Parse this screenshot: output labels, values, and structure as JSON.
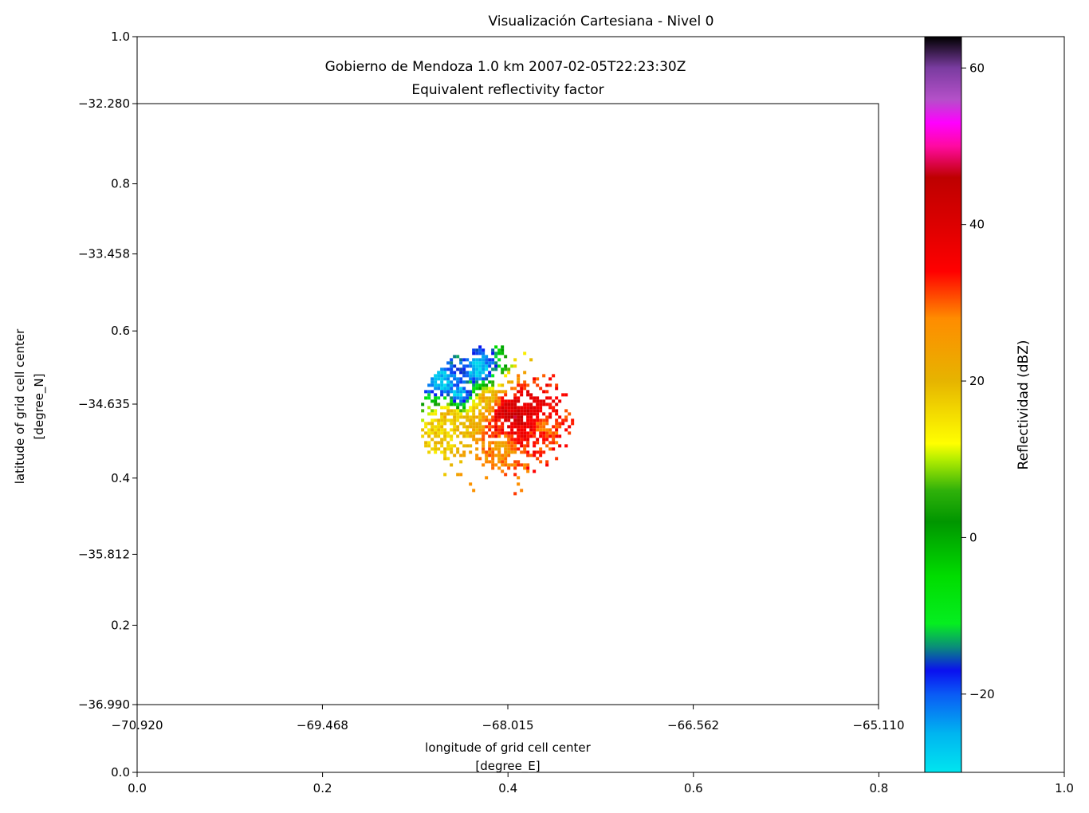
{
  "figure": {
    "title": "Visualización Cartesiana - Nivel 0"
  },
  "chart_data": [
    {
      "type": "axes",
      "role": "outer-figure-axes",
      "xlim": [
        0.0,
        1.0
      ],
      "ylim": [
        0.0,
        1.0
      ],
      "x_ticks": [
        {
          "value": 0.0,
          "label": "0.0"
        },
        {
          "value": 0.2,
          "label": "0.2"
        },
        {
          "value": 0.4,
          "label": "0.4"
        },
        {
          "value": 0.6,
          "label": "0.6"
        },
        {
          "value": 0.8,
          "label": "0.8"
        },
        {
          "value": 1.0,
          "label": "1.0"
        }
      ],
      "y_ticks": [
        {
          "value": 0.0,
          "label": "0.0"
        },
        {
          "value": 0.2,
          "label": "0.2"
        },
        {
          "value": 0.4,
          "label": "0.4"
        },
        {
          "value": 0.6,
          "label": "0.6"
        },
        {
          "value": 0.8,
          "label": "0.8"
        },
        {
          "value": 1.0,
          "label": "1.0"
        }
      ],
      "grid": false
    },
    {
      "type": "heatmap",
      "role": "radar-reflectivity-map",
      "title": "Gobierno de Mendoza 1.0 km 2007-02-05T22:23:30Z",
      "subtitle": "Equivalent reflectivity factor",
      "xlabel": "longitude of grid cell center",
      "xlabel_units": "[degree_E]",
      "ylabel": "latitude of grid cell center",
      "ylabel_units": "[degree_N]",
      "xlim": [
        -70.92,
        -65.11
      ],
      "ylim": [
        -36.99,
        -32.28
      ],
      "x_ticks": [
        {
          "value": -70.92,
          "label": "−70.920"
        },
        {
          "value": -69.468,
          "label": "−69.468"
        },
        {
          "value": -68.015,
          "label": "−68.015"
        },
        {
          "value": -66.562,
          "label": "−66.562"
        },
        {
          "value": -65.11,
          "label": "−65.110"
        }
      ],
      "y_ticks": [
        {
          "value": -32.28,
          "label": "−32.280"
        },
        {
          "value": -33.458,
          "label": "−33.458"
        },
        {
          "value": -34.635,
          "label": "−34.635"
        },
        {
          "value": -35.812,
          "label": "−35.812"
        },
        {
          "value": -36.99,
          "label": "−36.990"
        }
      ],
      "grid": false,
      "radar_echo": {
        "center_lon": -68.12,
        "center_lat": -34.75,
        "max_range_deg": 0.6,
        "cells": [
          {
            "lon": -68.05,
            "lat": -34.7,
            "dbz": 42
          },
          {
            "lon": -67.95,
            "lat": -34.72,
            "dbz": 44
          },
          {
            "lon": -67.88,
            "lat": -34.65,
            "dbz": 40
          },
          {
            "lon": -67.8,
            "lat": -34.7,
            "dbz": 38
          },
          {
            "lon": -68.1,
            "lat": -34.8,
            "dbz": 35
          },
          {
            "lon": -67.95,
            "lat": -34.85,
            "dbz": 36
          },
          {
            "lon": -67.75,
            "lat": -34.8,
            "dbz": 30
          },
          {
            "lon": -68.2,
            "lat": -34.6,
            "dbz": 22
          },
          {
            "lon": -68.3,
            "lat": -34.75,
            "dbz": 20
          },
          {
            "lon": -68.5,
            "lat": -34.7,
            "dbz": 20
          },
          {
            "lon": -68.55,
            "lat": -34.85,
            "dbz": 18
          },
          {
            "lon": -68.4,
            "lat": -34.55,
            "dbz": -28
          },
          {
            "lon": -68.55,
            "lat": -34.45,
            "dbz": -28
          },
          {
            "lon": -68.25,
            "lat": -34.35,
            "dbz": -28
          },
          {
            "lon": -68.05,
            "lat": -34.95,
            "dbz": 25
          }
        ]
      }
    },
    {
      "type": "colorbar",
      "label": "Reflectividad (dBZ)",
      "vmin": -30,
      "vmax": 64,
      "ticks": [
        {
          "value": -20,
          "label": "−20"
        },
        {
          "value": 0,
          "label": "0"
        },
        {
          "value": 20,
          "label": "20"
        },
        {
          "value": 40,
          "label": "40"
        },
        {
          "value": 60,
          "label": "60"
        }
      ],
      "colormap_stops": [
        {
          "value": -30,
          "color": "#00e5ef"
        },
        {
          "value": -25,
          "color": "#00b4f0"
        },
        {
          "value": -20,
          "color": "#0a5af5"
        },
        {
          "value": -17,
          "color": "#0a10f0"
        },
        {
          "value": -14,
          "color": "#0a8c7a"
        },
        {
          "value": -11,
          "color": "#05ee20"
        },
        {
          "value": -5,
          "color": "#00dd00"
        },
        {
          "value": 2,
          "color": "#009600"
        },
        {
          "value": 6,
          "color": "#2fb10a"
        },
        {
          "value": 10,
          "color": "#b4ee00"
        },
        {
          "value": 12,
          "color": "#ffff00"
        },
        {
          "value": 20,
          "color": "#e6b400"
        },
        {
          "value": 28,
          "color": "#ff8c00"
        },
        {
          "value": 34,
          "color": "#ff0000"
        },
        {
          "value": 40,
          "color": "#dc0000"
        },
        {
          "value": 46,
          "color": "#be0000"
        },
        {
          "value": 50,
          "color": "#ff0aa0"
        },
        {
          "value": 53,
          "color": "#ff00ff"
        },
        {
          "value": 56,
          "color": "#b450c8"
        },
        {
          "value": 60,
          "color": "#7a3ca0"
        },
        {
          "value": 64,
          "color": "#000000"
        }
      ]
    }
  ]
}
